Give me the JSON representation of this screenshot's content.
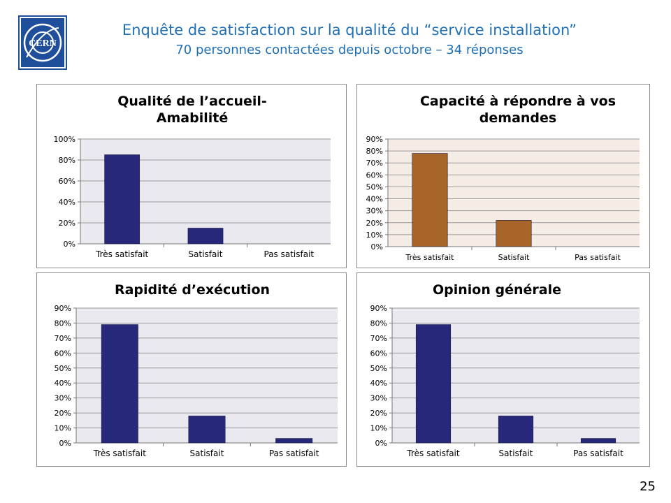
{
  "header": {
    "title": "Enquête de satisfaction sur la qualité du “service installation”",
    "subtitle": "70 personnes contactées depuis octobre – 34 réponses",
    "logo_text": "CERN",
    "accent_color": "#1f6fb5"
  },
  "page_number": "25",
  "chart_data": [
    {
      "type": "bar",
      "title": "Qualité de l’accueil- Amabilité",
      "title_lines": [
        "Qualité de l’accueil-",
        "Amabilité"
      ],
      "categories": [
        "Très satisfait",
        "Satisfait",
        "Pas satisfait"
      ],
      "values": [
        85,
        15,
        0
      ],
      "ylim": [
        0,
        100
      ],
      "yticks": [
        0,
        20,
        40,
        60,
        80,
        100
      ],
      "tick_labels": [
        "0%",
        "20%",
        "40%",
        "60%",
        "80%",
        "100%"
      ],
      "bar_color": "#28287a",
      "plot_bg": "#e9e9ef",
      "grid": true
    },
    {
      "type": "bar",
      "title": "Capacité à répondre à vos demandes",
      "title_lines": [
        "Capacité à répondre à vos",
        "demandes"
      ],
      "categories": [
        "Très satisfait",
        "Satisfait",
        "Pas satisfait"
      ],
      "values": [
        78,
        22,
        0
      ],
      "ylim": [
        0,
        90
      ],
      "yticks": [
        0,
        10,
        20,
        30,
        40,
        50,
        60,
        70,
        80,
        90
      ],
      "tick_labels": [
        "0%",
        "10%",
        "20%",
        "30%",
        "40%",
        "50%",
        "60%",
        "70%",
        "80%",
        "90%"
      ],
      "bar_color": "#a8652a",
      "plot_bg": "#f6ece6",
      "grid": true
    },
    {
      "type": "bar",
      "title": "Rapidité d’exécution",
      "title_lines": [
        "Rapidité d’exécution"
      ],
      "categories": [
        "Très satisfait",
        "Satisfait",
        "Pas satisfait"
      ],
      "values": [
        79,
        18,
        3
      ],
      "ylim": [
        0,
        90
      ],
      "yticks": [
        0,
        10,
        20,
        30,
        40,
        50,
        60,
        70,
        80,
        90
      ],
      "tick_labels": [
        "0%",
        "10%",
        "20%",
        "30%",
        "40%",
        "50%",
        "60%",
        "70%",
        "80%",
        "90%"
      ],
      "bar_color": "#28287a",
      "plot_bg": "#e9e9ef",
      "grid": true
    },
    {
      "type": "bar",
      "title": "Opinion générale",
      "title_lines": [
        "Opinion générale"
      ],
      "categories": [
        "Très satisfait",
        "Satisfait",
        "Pas satisfait"
      ],
      "values": [
        79,
        18,
        3
      ],
      "ylim": [
        0,
        90
      ],
      "yticks": [
        0,
        10,
        20,
        30,
        40,
        50,
        60,
        70,
        80,
        90
      ],
      "tick_labels": [
        "0%",
        "10%",
        "20%",
        "30%",
        "40%",
        "50%",
        "60%",
        "70%",
        "80%",
        "90%"
      ],
      "bar_color": "#28287a",
      "plot_bg": "#e9e9ef",
      "grid": true
    }
  ]
}
